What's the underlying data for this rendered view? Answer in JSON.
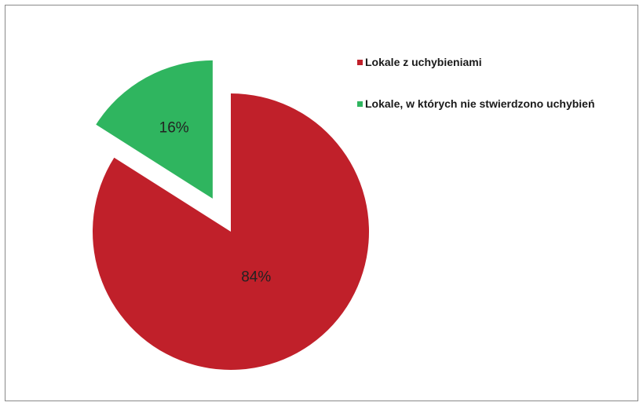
{
  "chart_data": {
    "type": "pie",
    "title": "",
    "slices": [
      {
        "name": "Lokale z uchybieniami",
        "value": 84,
        "label": "84%",
        "color": "#c0202a",
        "exploded": false
      },
      {
        "name": "Lokale, w których nie stwierdzono uchybień",
        "value": 16,
        "label": "16%",
        "color": "#2fb55f",
        "exploded": true
      }
    ],
    "start_angle_deg": 0,
    "direction": "clockwise",
    "legend_position": "top-right"
  },
  "colors": {
    "frame_border": "#8a8a8a",
    "background": "#ffffff"
  }
}
